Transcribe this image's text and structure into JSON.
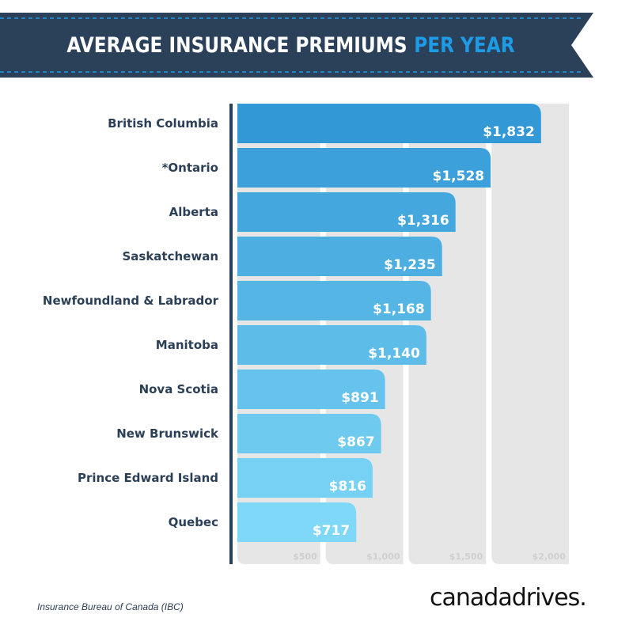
{
  "header": {
    "title_main": "AVERAGE INSURANCE PREMIUMS",
    "title_highlight": "PER YEAR"
  },
  "colors": {
    "banner": "#2b4159",
    "accent": "#1e9be6",
    "bar_start": "#3399d6",
    "bar_end": "#80d8f8",
    "grid": "#e6e6e6"
  },
  "chart_data": {
    "type": "bar",
    "orientation": "horizontal",
    "categories": [
      "British Columbia",
      "*Ontario",
      "Alberta",
      "Saskatchewan",
      "Newfoundland & Labrador",
      "Manitoba",
      "Nova Scotia",
      "New Brunswick",
      "Prince Edward Island",
      "Quebec"
    ],
    "values": [
      1832,
      1528,
      1316,
      1235,
      1168,
      1140,
      891,
      867,
      816,
      717
    ],
    "value_labels": [
      "$1,832",
      "$1,528",
      "$1,316",
      "$1,235",
      "$1,168",
      "$1,140",
      "$891",
      "$867",
      "$816",
      "$717"
    ],
    "xticks": [
      500,
      1000,
      1500,
      2000
    ],
    "xtick_labels": [
      "$500",
      "$1,000",
      "$1,500",
      "$2,000"
    ],
    "xlim": [
      0,
      2000
    ],
    "grid": true
  },
  "footer": {
    "source": "Insurance Bureau of Canada (IBC)",
    "logo": "canadadrives."
  }
}
